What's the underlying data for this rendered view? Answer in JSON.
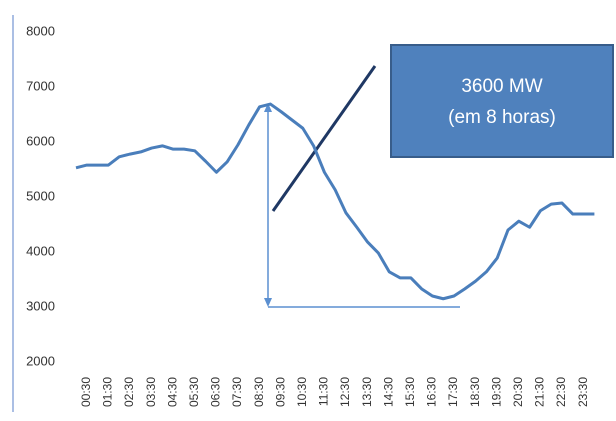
{
  "chart_data": {
    "type": "line",
    "categories": [
      null,
      "00:30",
      null,
      "01:30",
      null,
      "02:30",
      null,
      "03:30",
      null,
      "04:30",
      null,
      "05:30",
      null,
      "06:30",
      null,
      "07:30",
      null,
      "08:30",
      null,
      "09:30",
      null,
      "10:30",
      null,
      "11:30",
      null,
      "12:30",
      null,
      "13:30",
      null,
      "14:30",
      null,
      "15:30",
      null,
      "16:30",
      null,
      "17:30",
      null,
      "18:30",
      null,
      "19:30",
      null,
      "20:30",
      null,
      "21:30",
      null,
      "22:30",
      null,
      "23:30",
      null
    ],
    "series": [
      {
        "color": "#4a7ebb",
        "values": [
          5530,
          5580,
          5580,
          5580,
          5730,
          5780,
          5820,
          5890,
          5930,
          5870,
          5870,
          5840,
          5650,
          5450,
          5640,
          5950,
          6310,
          6640,
          6690,
          6550,
          6400,
          6250,
          5930,
          5450,
          5130,
          4710,
          4450,
          4180,
          3980,
          3640,
          3530,
          3530,
          3330,
          3200,
          3150,
          3200,
          3330,
          3470,
          3640,
          3890,
          4400,
          4560,
          4450,
          4750,
          4870,
          4890,
          4690,
          4690,
          4690
        ]
      }
    ],
    "ylim": [
      2000,
      8000
    ],
    "yticks": [
      2000,
      3000,
      4000,
      5000,
      6000,
      7000,
      8000
    ],
    "grid": false,
    "annotations": [
      "3600 MW",
      "(em 8 horas)"
    ]
  }
}
